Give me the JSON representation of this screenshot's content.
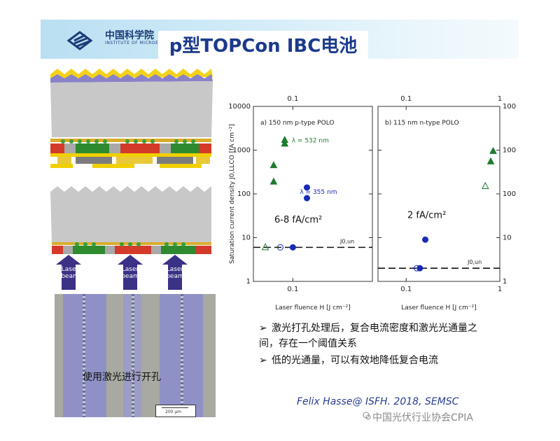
{
  "header": {
    "logo_text": "中国科学院",
    "logo_subtext": "INSTITUTE OF MICROELECTRONICS",
    "title": "p型TOPCon IBC电池",
    "logo_icon": "cas-logo-icon"
  },
  "diagram": {
    "beam_label_line1": "Laser",
    "beam_label_line2": "beam"
  },
  "micrograph": {
    "caption": "使用激光进行开孔",
    "scale_bar": "200 μm"
  },
  "bullets": [
    {
      "mark": "➢",
      "text": "激光打孔处理后，复合电流密度和激光光通量之间，存在一个阈值关系"
    },
    {
      "mark": "➢",
      "text": "低的光通量，可以有效地降低复合电流"
    }
  ],
  "citation": "Felix Hasse@ ISFH. 2018, SEMSC",
  "watermark": "中国光伏行业协会CPIA",
  "chart_data": [
    {
      "type": "scatter",
      "panel": "a) 150 nm p-type POLO",
      "x_scale": "log",
      "y_scale": "log",
      "xlim": [
        0.06,
        0.28
      ],
      "ylim": [
        1,
        10000
      ],
      "x_ticks": [
        "0.1"
      ],
      "y_ticks": [
        "1",
        "10",
        "100",
        "1000",
        "10000"
      ],
      "ylabel": "Saturation current density J0,LLCO [fA cm⁻²]",
      "xlabel": "Laser fluence H [J cm⁻²]",
      "annotation": "6-8 fA/cm²",
      "threshold_label": "J0,un",
      "threshold_value": 6,
      "series": [
        {
          "name": "λ = 532 nm",
          "color": "#1f7a2e",
          "marker": "triangle",
          "points": [
            [
              0.078,
              450
            ],
            [
              0.078,
              190
            ],
            [
              0.09,
              1400
            ],
            [
              0.09,
              1700
            ]
          ]
        },
        {
          "name": "λ = 355 nm",
          "color": "#1a2ab8",
          "marker": "circle",
          "points": [
            [
              0.12,
              140
            ],
            [
              0.12,
              80
            ],
            [
              0.1,
              6
            ]
          ]
        },
        {
          "name": "",
          "color": "#1f7a2e",
          "marker": "triangle-open",
          "points": [
            [
              0.07,
              6
            ]
          ]
        },
        {
          "name": "",
          "color": "#1a2ab8",
          "marker": "circle-open",
          "points": [
            [
              0.085,
              6
            ]
          ]
        }
      ]
    },
    {
      "type": "scatter",
      "panel": "b) 115 nm n-type POLO",
      "x_scale": "log",
      "y_scale": "log",
      "xlim": [
        0.05,
        1
      ],
      "ylim": [
        1,
        10000
      ],
      "x_ticks": [
        "0.1",
        "1"
      ],
      "y_ticks": [
        "1",
        "10",
        "100",
        "1000",
        "10000"
      ],
      "xlabel": "Laser fluence H [J cm⁻²]",
      "top_ticks": [
        "0.1",
        "1"
      ],
      "annotation": "2 fA/cm²",
      "threshold_label": "J0,un",
      "threshold_value": 2,
      "series": [
        {
          "name": "",
          "color": "#1a2ab8",
          "marker": "circle",
          "points": [
            [
              0.16,
              9
            ],
            [
              0.14,
              2
            ]
          ]
        },
        {
          "name": "",
          "color": "#1a2ab8",
          "marker": "circle-open",
          "points": [
            [
              0.13,
              2
            ]
          ]
        },
        {
          "name": "",
          "color": "#1f7a2e",
          "marker": "triangle",
          "points": [
            [
              0.8,
              550
            ],
            [
              0.85,
              950
            ]
          ]
        },
        {
          "name": "",
          "color": "#1f7a2e",
          "marker": "triangle-open",
          "points": [
            [
              0.7,
              150
            ]
          ]
        }
      ]
    }
  ]
}
